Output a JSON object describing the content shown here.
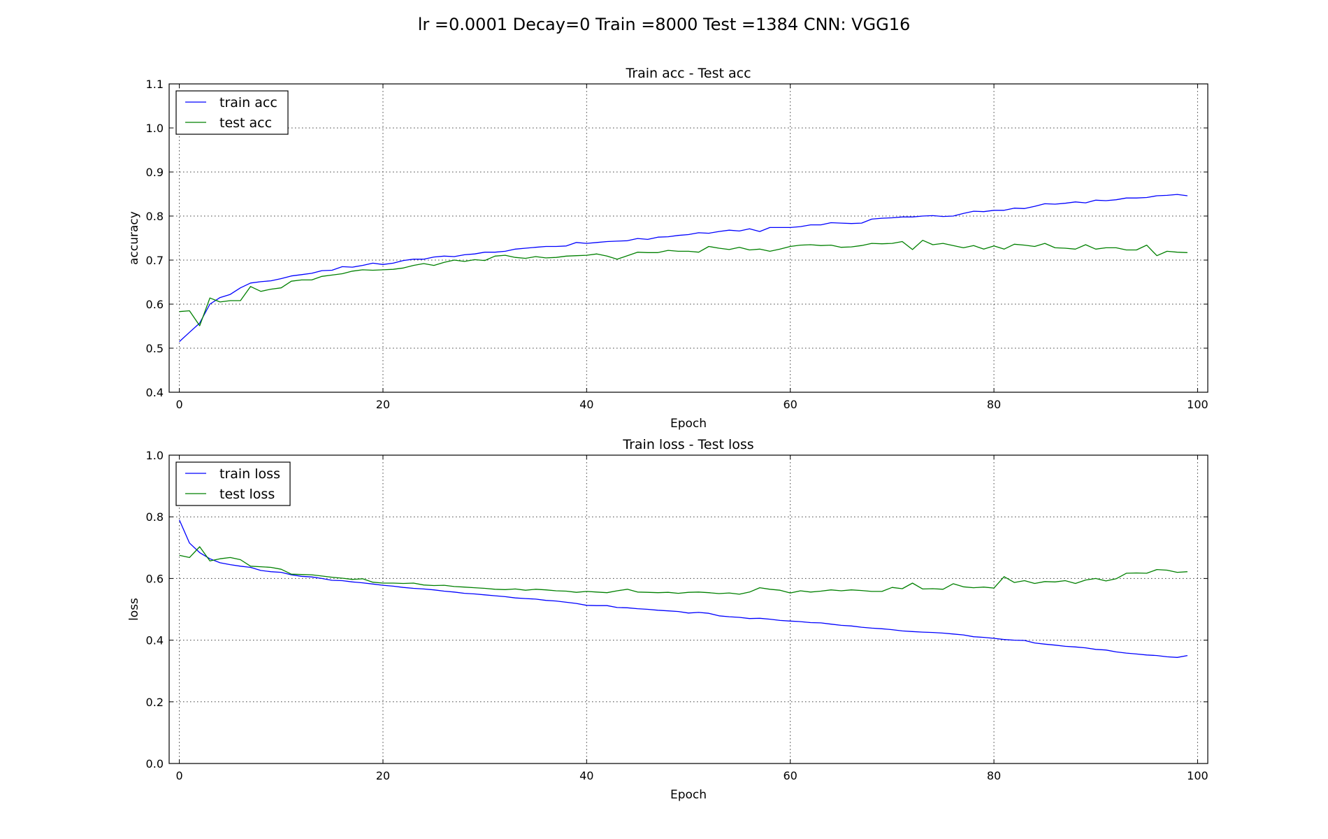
{
  "figure": {
    "suptitle": "lr =0.0001 Decay=0 Train =8000 Test =1384 CNN: VGG16"
  },
  "chart_data": [
    {
      "type": "line",
      "title": "Train acc - Test acc",
      "xlabel": "Epoch",
      "ylabel": "accuracy",
      "xlim": [
        -1,
        101
      ],
      "ylim": [
        0.4,
        1.1
      ],
      "xticks": [
        0,
        20,
        40,
        60,
        80,
        100
      ],
      "yticks": [
        0.4,
        0.5,
        0.6,
        0.7,
        0.8,
        0.9,
        1.0,
        1.1
      ],
      "ytick_labels": [
        "0.4",
        "0.5",
        "0.6",
        "0.7",
        "0.8",
        "0.9",
        "1.0",
        "1.1"
      ],
      "grid": true,
      "legend_position": "upper-left",
      "series": [
        {
          "name": "train acc",
          "color": "#0000ff",
          "values": [
            0.515,
            0.536,
            0.557,
            0.6,
            0.615,
            0.622,
            0.637,
            0.648,
            0.651,
            0.653,
            0.658,
            0.664,
            0.667,
            0.67,
            0.676,
            0.677,
            0.685,
            0.684,
            0.688,
            0.693,
            0.69,
            0.693,
            0.699,
            0.702,
            0.702,
            0.707,
            0.709,
            0.708,
            0.712,
            0.714,
            0.718,
            0.718,
            0.72,
            0.725,
            0.727,
            0.729,
            0.731,
            0.731,
            0.732,
            0.74,
            0.738,
            0.74,
            0.742,
            0.743,
            0.744,
            0.749,
            0.747,
            0.752,
            0.753,
            0.756,
            0.758,
            0.762,
            0.761,
            0.765,
            0.768,
            0.766,
            0.771,
            0.765,
            0.774,
            0.774,
            0.774,
            0.776,
            0.78,
            0.78,
            0.785,
            0.784,
            0.783,
            0.784,
            0.793,
            0.795,
            0.796,
            0.798,
            0.798,
            0.8,
            0.801,
            0.799,
            0.8,
            0.806,
            0.811,
            0.81,
            0.813,
            0.813,
            0.818,
            0.817,
            0.822,
            0.828,
            0.827,
            0.829,
            0.832,
            0.83,
            0.836,
            0.835,
            0.837,
            0.841,
            0.841,
            0.842,
            0.846,
            0.847,
            0.849,
            0.846
          ]
        },
        {
          "name": "test acc",
          "color": "#008000",
          "values": [
            0.583,
            0.585,
            0.551,
            0.614,
            0.605,
            0.608,
            0.608,
            0.64,
            0.629,
            0.634,
            0.637,
            0.652,
            0.655,
            0.655,
            0.663,
            0.666,
            0.669,
            0.675,
            0.678,
            0.677,
            0.678,
            0.679,
            0.682,
            0.688,
            0.692,
            0.688,
            0.695,
            0.7,
            0.697,
            0.701,
            0.699,
            0.709,
            0.711,
            0.706,
            0.704,
            0.708,
            0.705,
            0.706,
            0.709,
            0.71,
            0.711,
            0.714,
            0.709,
            0.702,
            0.71,
            0.718,
            0.717,
            0.717,
            0.722,
            0.72,
            0.72,
            0.718,
            0.731,
            0.727,
            0.724,
            0.729,
            0.723,
            0.725,
            0.72,
            0.725,
            0.731,
            0.734,
            0.735,
            0.733,
            0.734,
            0.729,
            0.73,
            0.733,
            0.738,
            0.737,
            0.738,
            0.742,
            0.724,
            0.745,
            0.735,
            0.738,
            0.733,
            0.728,
            0.733,
            0.725,
            0.732,
            0.725,
            0.736,
            0.734,
            0.731,
            0.738,
            0.728,
            0.727,
            0.725,
            0.735,
            0.725,
            0.728,
            0.728,
            0.723,
            0.723,
            0.734,
            0.71,
            0.72,
            0.718,
            0.717
          ]
        }
      ]
    },
    {
      "type": "line",
      "title": "Train loss - Test loss",
      "xlabel": "Epoch",
      "ylabel": "loss",
      "xlim": [
        -1,
        101
      ],
      "ylim": [
        0.0,
        1.0
      ],
      "xticks": [
        0,
        20,
        40,
        60,
        80,
        100
      ],
      "yticks": [
        0.0,
        0.2,
        0.4,
        0.6,
        0.8,
        1.0
      ],
      "ytick_labels": [
        "0.0",
        "0.2",
        "0.4",
        "0.6",
        "0.8",
        "1.0"
      ],
      "grid": true,
      "legend_position": "upper-left",
      "series": [
        {
          "name": "train loss",
          "color": "#0000ff",
          "values": [
            0.79,
            0.715,
            0.684,
            0.664,
            0.651,
            0.645,
            0.64,
            0.636,
            0.626,
            0.622,
            0.62,
            0.612,
            0.607,
            0.605,
            0.6,
            0.594,
            0.593,
            0.589,
            0.586,
            0.582,
            0.578,
            0.575,
            0.571,
            0.568,
            0.566,
            0.563,
            0.559,
            0.556,
            0.552,
            0.55,
            0.547,
            0.544,
            0.541,
            0.537,
            0.535,
            0.533,
            0.529,
            0.527,
            0.523,
            0.519,
            0.513,
            0.512,
            0.512,
            0.506,
            0.505,
            0.502,
            0.5,
            0.497,
            0.495,
            0.493,
            0.488,
            0.49,
            0.487,
            0.479,
            0.476,
            0.474,
            0.47,
            0.471,
            0.468,
            0.464,
            0.462,
            0.46,
            0.457,
            0.456,
            0.452,
            0.448,
            0.446,
            0.442,
            0.439,
            0.437,
            0.434,
            0.43,
            0.428,
            0.426,
            0.425,
            0.423,
            0.42,
            0.417,
            0.411,
            0.409,
            0.406,
            0.402,
            0.4,
            0.399,
            0.391,
            0.387,
            0.384,
            0.38,
            0.378,
            0.375,
            0.37,
            0.368,
            0.362,
            0.358,
            0.355,
            0.352,
            0.35,
            0.346,
            0.344,
            0.35
          ]
        },
        {
          "name": "test loss",
          "color": "#008000",
          "values": [
            0.675,
            0.668,
            0.703,
            0.657,
            0.664,
            0.668,
            0.661,
            0.64,
            0.638,
            0.636,
            0.63,
            0.614,
            0.613,
            0.612,
            0.608,
            0.604,
            0.601,
            0.597,
            0.599,
            0.588,
            0.585,
            0.585,
            0.584,
            0.585,
            0.579,
            0.577,
            0.578,
            0.574,
            0.572,
            0.57,
            0.568,
            0.565,
            0.564,
            0.566,
            0.562,
            0.565,
            0.563,
            0.56,
            0.559,
            0.555,
            0.558,
            0.556,
            0.554,
            0.56,
            0.565,
            0.556,
            0.555,
            0.554,
            0.555,
            0.552,
            0.555,
            0.556,
            0.554,
            0.551,
            0.553,
            0.549,
            0.556,
            0.57,
            0.565,
            0.562,
            0.553,
            0.56,
            0.556,
            0.559,
            0.563,
            0.56,
            0.563,
            0.561,
            0.558,
            0.558,
            0.571,
            0.567,
            0.585,
            0.566,
            0.567,
            0.565,
            0.583,
            0.573,
            0.57,
            0.572,
            0.569,
            0.606,
            0.587,
            0.593,
            0.584,
            0.59,
            0.589,
            0.593,
            0.584,
            0.595,
            0.6,
            0.592,
            0.599,
            0.617,
            0.618,
            0.617,
            0.629,
            0.627,
            0.62,
            0.622
          ]
        }
      ]
    }
  ]
}
